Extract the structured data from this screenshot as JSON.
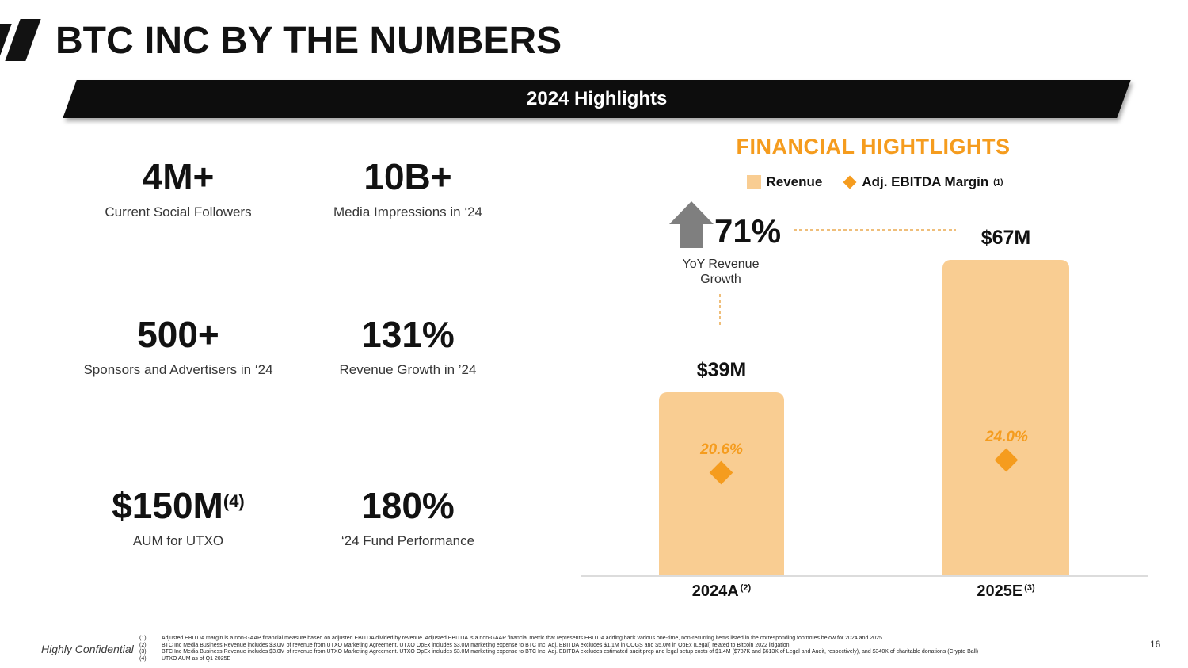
{
  "slide": {
    "title": "BTC INC BY THE NUMBERS",
    "banner_label": "2024 Highlights",
    "confidential_label": "Highly Confidential",
    "page_number": "16"
  },
  "stats": [
    {
      "value": "4M+",
      "sup": "",
      "label": "Current Social Followers"
    },
    {
      "value": "10B+",
      "sup": "",
      "label": "Media Impressions in ‘24"
    },
    {
      "value": "500+",
      "sup": "",
      "label": "Sponsors and Advertisers in ‘24"
    },
    {
      "value": "131%",
      "sup": "",
      "label": "Revenue Growth in ’24"
    },
    {
      "value": "$150M",
      "sup": "(4)",
      "label": "AUM for UTXO"
    },
    {
      "value": "180%",
      "sup": "",
      "label": "‘24 Fund Performance"
    }
  ],
  "chart": {
    "title": "FINANCIAL HIGHTLIGHTS",
    "legend": {
      "revenue_label": "Revenue",
      "margin_label": "Adj. EBITDA Margin",
      "margin_sup": "(1)"
    },
    "growth_value": "71%",
    "growth_label": "YoY Revenue Growth",
    "colors": {
      "bar_fill": "#F9CD92",
      "accent_orange": "#F59C1E",
      "dashed_line": "#EFBE7A",
      "arrow_gray": "#7F7F7F",
      "baseline_gray": "#DCDCDC"
    }
  },
  "chart_data": {
    "type": "bar",
    "title": "FINANCIAL HIGHTLIGHTS",
    "categories": [
      "2024A",
      "2025E"
    ],
    "category_sups": [
      "(2)",
      "(3)"
    ],
    "series": [
      {
        "name": "Revenue",
        "unit": "$M",
        "values": [
          39,
          67
        ],
        "labels": [
          "$39M",
          "$67M"
        ]
      },
      {
        "name": "Adj. EBITDA Margin",
        "unit": "%",
        "values": [
          20.6,
          24.0
        ],
        "labels": [
          "20.6%",
          "24.0%"
        ]
      }
    ],
    "annotations": [
      {
        "text": "71%",
        "label": "YoY Revenue Growth"
      }
    ],
    "legend_position": "top",
    "grid": false,
    "xlabel": "",
    "ylabel": ""
  },
  "footnotes": [
    {
      "ref": "(1)",
      "text": "Adjusted EBITDA margin is a non-GAAP financial measure based on adjusted EBITDA divided by revenue. Adjusted EBITDA is a non-GAAP financial metric that represents EBITDA adding back various one-time, non-recurring items listed in the corresponding footnotes below for 2024 and 2025"
    },
    {
      "ref": "(2)",
      "text": "BTC Inc Media Business Revenue includes $3.0M of revenue from UTXO Marketing Agreement. UTXO OpEx includes $3.0M marketing expense to BTC Inc. Adj. EBITDA excludes $1.1M in COGS and $5.0M in OpEx (Legal) related to Bitcoin 2022 litigation"
    },
    {
      "ref": "(3)",
      "text": "BTC Inc Media Business Revenue includes $3.0M of revenue from UTXO Marketing Agreement. UTXO OpEx includes $3.0M marketing expense to BTC Inc. Adj. EBITDA excludes estimated audit prep and legal setup costs of $1.4M ($787K and $613K of Legal and Audit, respectively), and $340K of charitable donations (Crypto Ball)"
    },
    {
      "ref": "(4)",
      "text": "UTXO AUM as of Q1 2025E"
    }
  ]
}
